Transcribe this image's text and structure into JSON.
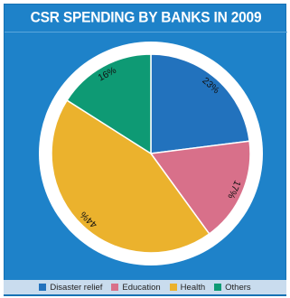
{
  "chart_data": {
    "type": "pie",
    "title": "CSR SPENDING BY BANKS IN 2009",
    "categories": [
      "Disaster relief",
      "Education",
      "Health",
      "Others"
    ],
    "values": [
      23,
      17,
      44,
      16
    ],
    "labels": [
      "23%",
      "17%",
      "44%",
      "16%"
    ],
    "colors": [
      "#2272bd",
      "#d8708a",
      "#ebb22d",
      "#0e9a74"
    ],
    "start_angle_deg": 0,
    "direction": "clockwise",
    "legend_position": "bottom"
  },
  "colors": {
    "background": "#1e82c9",
    "ring": "#ffffff",
    "legend_strip": "#c9dcee"
  }
}
